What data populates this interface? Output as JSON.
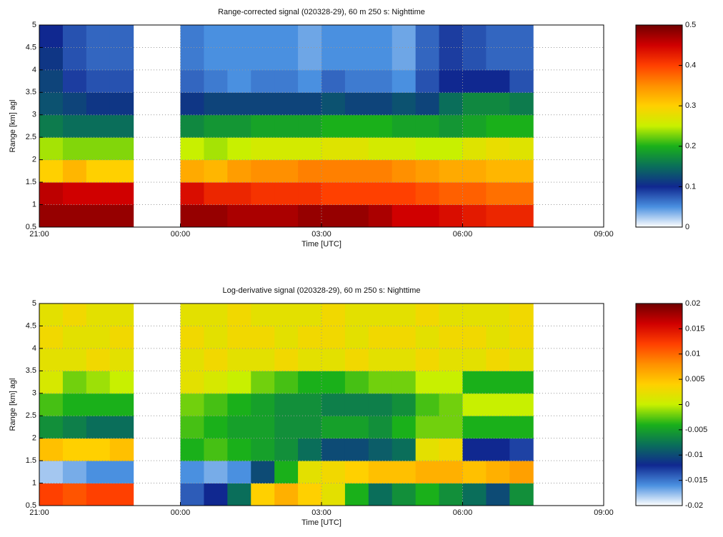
{
  "chart_data": [
    {
      "type": "heatmap",
      "title": "Range-corrected signal (020328-29), 60 m 250 s: Nighttime",
      "x_label": "Time [UTC]",
      "y_label": "Range [km] agl",
      "xlim": [
        21,
        33
      ],
      "xticks": [
        {
          "value": 21,
          "label": "21:00"
        },
        {
          "value": 24,
          "label": "00:00"
        },
        {
          "value": 27,
          "label": "03:00"
        },
        {
          "value": 30,
          "label": "06:00"
        },
        {
          "value": 33,
          "label": "09:00"
        }
      ],
      "ylim": [
        0.5,
        5
      ],
      "yticks": [
        0.5,
        1,
        1.5,
        2,
        2.5,
        3,
        3.5,
        4,
        4.5,
        5
      ],
      "grid": true,
      "x_bins": [
        21,
        21.5,
        22,
        22.5,
        23,
        24,
        24.5,
        25,
        25.5,
        26,
        26.5,
        27,
        27.5,
        28,
        28.5,
        29,
        29.5,
        30,
        30.5,
        31,
        31.5
      ],
      "y_bins": [
        0.5,
        1,
        1.5,
        2,
        2.5,
        3,
        3.5,
        4,
        4.5,
        5
      ],
      "z": [
        [
          0.48,
          0.48,
          0.48,
          0.48,
          null,
          0.48,
          0.48,
          0.47,
          0.47,
          0.47,
          0.48,
          0.48,
          0.48,
          0.47,
          0.45,
          0.45,
          0.44,
          0.43,
          0.42,
          0.42
        ],
        [
          0.46,
          0.45,
          0.45,
          0.45,
          null,
          0.44,
          0.42,
          0.42,
          0.41,
          0.41,
          0.41,
          0.4,
          0.4,
          0.4,
          0.4,
          0.39,
          0.38,
          0.38,
          0.37,
          0.37
        ],
        [
          0.3,
          0.32,
          0.3,
          0.3,
          null,
          0.33,
          0.32,
          0.34,
          0.35,
          0.35,
          0.36,
          0.36,
          0.36,
          0.36,
          0.35,
          0.34,
          0.33,
          0.33,
          0.32,
          0.32
        ],
        [
          0.24,
          0.23,
          0.23,
          0.23,
          null,
          0.25,
          0.24,
          0.25,
          0.26,
          0.26,
          0.26,
          0.27,
          0.27,
          0.26,
          0.26,
          0.25,
          0.25,
          0.27,
          0.28,
          0.27
        ],
        [
          0.16,
          0.15,
          0.15,
          0.15,
          null,
          0.17,
          0.18,
          0.18,
          0.19,
          0.19,
          0.19,
          0.2,
          0.2,
          0.2,
          0.19,
          0.19,
          0.18,
          0.19,
          0.2,
          0.2
        ],
        [
          0.13,
          0.12,
          0.11,
          0.11,
          null,
          0.11,
          0.12,
          0.12,
          0.12,
          0.12,
          0.12,
          0.13,
          0.12,
          0.12,
          0.13,
          0.12,
          0.15,
          0.17,
          0.17,
          0.16
        ],
        [
          0.12,
          0.09,
          0.08,
          0.08,
          null,
          0.07,
          0.06,
          0.05,
          0.06,
          0.06,
          0.05,
          0.07,
          0.06,
          0.06,
          0.05,
          0.08,
          0.1,
          0.1,
          0.1,
          0.08
        ],
        [
          0.11,
          0.08,
          0.07,
          0.07,
          null,
          0.06,
          0.05,
          0.05,
          0.05,
          0.05,
          0.04,
          0.05,
          0.05,
          0.05,
          0.04,
          0.07,
          0.09,
          0.08,
          0.07,
          0.07
        ],
        [
          0.1,
          0.08,
          0.07,
          0.07,
          null,
          0.06,
          0.05,
          0.05,
          0.05,
          0.05,
          0.04,
          0.05,
          0.05,
          0.05,
          0.04,
          0.07,
          0.09,
          0.08,
          0.07,
          0.07
        ]
      ],
      "clim": [
        0,
        0.5
      ],
      "cticks": [
        0,
        0.1,
        0.2,
        0.3,
        0.4,
        0.5
      ],
      "colormap": [
        "#ffffff",
        "#4a90e0",
        "#102890",
        "#0a6e5a",
        "#1ab01a",
        "#c8f000",
        "#ffd000",
        "#ff9000",
        "#ff4000",
        "#d00000",
        "#700000"
      ]
    },
    {
      "type": "heatmap",
      "title": "Log-derivative signal (020328-29), 60 m 250 s: Nighttime",
      "x_label": "Time [UTC]",
      "y_label": "Range [km] agl",
      "xlim": [
        21,
        33
      ],
      "xticks": [
        {
          "value": 21,
          "label": "21:00"
        },
        {
          "value": 24,
          "label": "00:00"
        },
        {
          "value": 27,
          "label": "03:00"
        },
        {
          "value": 30,
          "label": "06:00"
        },
        {
          "value": 33,
          "label": "09:00"
        }
      ],
      "ylim": [
        0.5,
        5
      ],
      "yticks": [
        0.5,
        1,
        1.5,
        2,
        2.5,
        3,
        3.5,
        4,
        4.5,
        5
      ],
      "grid": true,
      "x_bins": [
        21,
        21.5,
        22,
        22.5,
        23,
        24,
        24.5,
        25,
        25.5,
        26,
        26.5,
        27,
        27.5,
        28,
        28.5,
        29,
        29.5,
        30,
        30.5,
        31,
        31.5
      ],
      "y_bins": [
        0.5,
        1,
        1.5,
        2,
        2.5,
        3,
        3.5,
        4,
        4.5,
        5
      ],
      "z": [
        [
          0.012,
          0.011,
          0.012,
          0.012,
          null,
          -0.014,
          -0.012,
          -0.008,
          0.004,
          0.006,
          0.004,
          0.002,
          -0.004,
          -0.008,
          -0.006,
          -0.004,
          -0.006,
          -0.008,
          -0.01,
          -0.006
        ],
        [
          -0.018,
          -0.017,
          -0.016,
          -0.016,
          null,
          -0.016,
          -0.017,
          -0.016,
          -0.01,
          -0.004,
          0.002,
          0.003,
          0.004,
          0.005,
          0.005,
          0.006,
          0.006,
          0.005,
          0.006,
          0.007
        ],
        [
          0.005,
          0.004,
          0.004,
          0.005,
          null,
          -0.004,
          -0.003,
          -0.004,
          -0.005,
          -0.006,
          -0.008,
          -0.01,
          -0.01,
          -0.009,
          -0.008,
          0.002,
          0.003,
          -0.012,
          -0.012,
          -0.013
        ],
        [
          -0.006,
          -0.007,
          -0.008,
          -0.008,
          null,
          -0.003,
          -0.004,
          -0.005,
          -0.005,
          -0.006,
          -0.006,
          -0.005,
          -0.005,
          -0.006,
          -0.004,
          -0.002,
          -0.002,
          -0.004,
          -0.004,
          -0.004
        ],
        [
          -0.003,
          -0.004,
          -0.004,
          -0.004,
          null,
          -0.002,
          -0.003,
          -0.004,
          -0.005,
          -0.006,
          -0.006,
          -0.007,
          -0.007,
          -0.007,
          -0.006,
          -0.003,
          -0.002,
          0.0,
          0.0,
          0.0
        ],
        [
          0.001,
          -0.002,
          -0.001,
          0.0,
          null,
          0.002,
          0.001,
          0.0,
          -0.002,
          -0.003,
          -0.004,
          -0.004,
          -0.003,
          -0.002,
          -0.002,
          0.0,
          0.0,
          -0.004,
          -0.004,
          -0.004
        ],
        [
          0.002,
          0.002,
          0.003,
          0.002,
          null,
          0.002,
          0.003,
          0.002,
          0.002,
          0.003,
          0.002,
          0.002,
          0.003,
          0.002,
          0.002,
          0.003,
          0.002,
          0.002,
          0.003,
          0.002
        ],
        [
          0.003,
          0.002,
          0.002,
          0.003,
          null,
          0.003,
          0.002,
          0.003,
          0.003,
          0.002,
          0.003,
          0.003,
          0.002,
          0.003,
          0.003,
          0.002,
          0.003,
          0.003,
          0.002,
          0.003
        ],
        [
          0.002,
          0.003,
          0.002,
          0.002,
          null,
          0.002,
          0.002,
          0.003,
          0.002,
          0.002,
          0.002,
          0.003,
          0.002,
          0.002,
          0.002,
          0.003,
          0.002,
          0.002,
          0.002,
          0.003
        ]
      ],
      "clim": [
        -0.02,
        0.02
      ],
      "cticks": [
        -0.02,
        -0.015,
        -0.01,
        -0.005,
        0,
        0.005,
        0.01,
        0.015,
        0.02
      ],
      "colormap": [
        "#ffffff",
        "#4a90e0",
        "#102890",
        "#0a6e5a",
        "#1ab01a",
        "#c8f000",
        "#ffd000",
        "#ff9000",
        "#ff4000",
        "#d00000",
        "#700000"
      ]
    }
  ]
}
